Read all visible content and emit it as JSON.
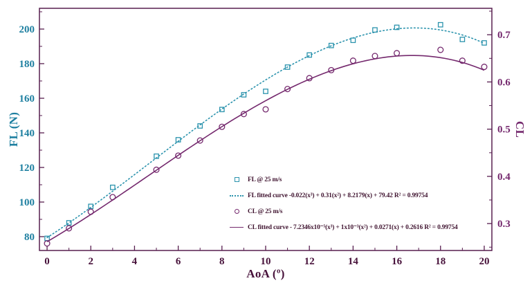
{
  "chart_data": {
    "type": "scatter",
    "title": "",
    "xlabel": "AoA (º)",
    "xlim": [
      -0.35,
      20.35
    ],
    "x_major_ticks": [
      0,
      2,
      4,
      6,
      8,
      10,
      12,
      14,
      16,
      18,
      20
    ],
    "x_minor_ticks": [
      1,
      3,
      5,
      7,
      9,
      11,
      13,
      15,
      17,
      19
    ],
    "x_tick_label_color": "#47113a",
    "frame_color": "#571e4f",
    "grid": false,
    "axes": {
      "left": {
        "label": "FL (N)",
        "min": 72,
        "max": 212,
        "major_ticks": [
          80,
          100,
          120,
          140,
          160,
          180,
          200
        ],
        "minor_ticks": [
          90,
          110,
          130,
          150,
          170,
          190,
          210
        ],
        "color": "#1d7fa0"
      },
      "right": {
        "label": "CL",
        "min": 0.243,
        "max": 0.756,
        "major_ticks": [
          0.3,
          0.4,
          0.5,
          0.6,
          0.7
        ],
        "minor_ticks": [
          0.25,
          0.35,
          0.45,
          0.55,
          0.65,
          0.75
        ],
        "color": "#74286d"
      }
    },
    "series": [
      {
        "id": "fl-points",
        "name": "FL @ 25 m/s",
        "axis": "left",
        "kind": "scatter",
        "marker": "square",
        "color": "#2b93ad",
        "x": [
          0,
          1,
          2,
          3,
          5,
          6,
          7,
          8,
          9,
          10,
          11,
          12,
          13,
          14,
          15,
          16,
          18,
          19,
          20
        ],
        "y": [
          79,
          88,
          97.5,
          108.5,
          126.5,
          136,
          144,
          153.5,
          162,
          164,
          178,
          185,
          190.5,
          193.5,
          199.5,
          201,
          202.5,
          194,
          192
        ]
      },
      {
        "id": "fl-fit",
        "name": "FL fitted curve",
        "axis": "left",
        "kind": "line",
        "style": "dotted",
        "color": "#2b93ad",
        "poly": [
          -0.022,
          0.31,
          8.2179,
          79.42
        ],
        "x_range": [
          0,
          20
        ],
        "r_squared": 0.99754
      },
      {
        "id": "cl-points",
        "name": "CL @ 25 m/s",
        "axis": "right",
        "kind": "scatter",
        "marker": "circle",
        "color": "#74286d",
        "x": [
          0,
          1,
          2,
          3,
          5,
          6,
          7,
          8,
          9,
          10,
          11,
          12,
          13,
          14,
          15,
          16,
          18,
          19,
          20
        ],
        "y": [
          0.258,
          0.29,
          0.325,
          0.356,
          0.414,
          0.444,
          0.476,
          0.505,
          0.532,
          0.542,
          0.585,
          0.608,
          0.625,
          0.645,
          0.655,
          0.661,
          0.668,
          0.645,
          0.632
        ]
      },
      {
        "id": "cl-fit",
        "name": "CL fitted curve",
        "axis": "right",
        "kind": "line",
        "style": "solid",
        "color": "#74286d",
        "poly": [
          -7.2346e-05,
          0.001,
          0.0271,
          0.2616
        ],
        "x_range": [
          0,
          20
        ],
        "r_squared": 0.99754
      }
    ],
    "legend": {
      "position": "inside-bottom-right",
      "items": [
        {
          "swatch": "square",
          "color": "#2b93ad",
          "label": "FL @ 25 m/s"
        },
        {
          "swatch": "dotted-line",
          "color": "#2b93ad",
          "label": "FL fitted curve -0.022(x³) + 0.31(x²) + 8.2179(x) + 79.42 R² = 0.99754"
        },
        {
          "swatch": "circle",
          "color": "#74286d",
          "label": "CL @ 25 m/s"
        },
        {
          "swatch": "solid-line",
          "color": "#74286d",
          "label": "CL fitted curve - 7.2346x10⁻⁵(x³) + 1x10⁻³(x²) + 0.0271(x) + 0.2616  R² = 0.99754"
        }
      ]
    }
  }
}
